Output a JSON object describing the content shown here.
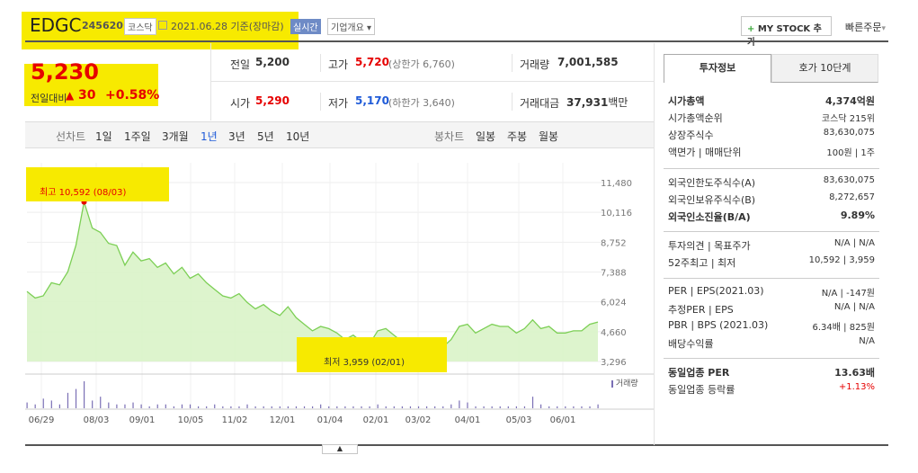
{
  "header": {
    "name": "EDGC",
    "code": "245620",
    "market_badge": "코스닥",
    "date_text": "2021.06.28 기준(장마감)",
    "realtime_label": "실시간",
    "company_info_label": "기업개요",
    "mystock_label": "MY STOCK 추가",
    "quick_order_label": "빠른주문"
  },
  "price": {
    "current": "5,230",
    "change_label": "전일대비",
    "change_value": "30",
    "change_pct": "+0.58%"
  },
  "quote": {
    "prev_close_label": "전일",
    "prev_close": "5,200",
    "high_label": "고가",
    "high": "5,720",
    "upper_limit": "(상한가 6,760)",
    "volume_label": "거래량",
    "volume": "7,001,585",
    "open_label": "시가",
    "open": "5,290",
    "low_label": "저가",
    "low": "5,170",
    "lower_limit": "(하한가 3,640)",
    "amount_label": "거래대금",
    "amount": "37,931",
    "amount_unit": "백만"
  },
  "chart_tabs": {
    "line_label": "선차트",
    "line_periods": [
      "1일",
      "1주일",
      "3개월",
      "1년",
      "3년",
      "5년",
      "10년"
    ],
    "active_period": "1년",
    "candle_label": "봉차트",
    "candle_periods": [
      "일봉",
      "주봉",
      "월봉"
    ]
  },
  "colors": {
    "accent_red": "#e60000",
    "accent_blue": "#1f5bd8",
    "highlight": "#f7ea00",
    "area_fill": "#d9f3c8",
    "area_line": "#7ccf55"
  },
  "chart_data": {
    "type": "area",
    "annotations": {
      "max": "최고 10,592 (08/03)",
      "min": "최저 3,959 (02/01)"
    },
    "y_ticks": [
      "11,480",
      "10,116",
      "8,752",
      "7,388",
      "6,024",
      "4,660",
      "3,296"
    ],
    "ylim": [
      3296,
      11480
    ],
    "x_ticks": [
      "06/29",
      "08/03",
      "09/01",
      "10/05",
      "11/02",
      "12/01",
      "01/04",
      "02/01",
      "03/02",
      "04/01",
      "05/03",
      "06/01"
    ],
    "volume_label": "거래량",
    "series": [
      {
        "values": [
          6500,
          6200,
          6300,
          6900,
          6800,
          7400,
          8600,
          10592,
          9400,
          9200,
          8700,
          8600,
          7700,
          8300,
          7900,
          8000,
          7600,
          7800,
          7300,
          7600,
          7100,
          7300,
          6900,
          6600,
          6300,
          6200,
          6400,
          6000,
          5700,
          5900,
          5600,
          5400,
          5800,
          5300,
          5000,
          4700,
          4900,
          4800,
          4600,
          4300,
          4500,
          4200,
          4100,
          4700,
          4800,
          4500,
          4200,
          4100,
          4000,
          4200,
          4100,
          3959,
          4300,
          4900,
          5000,
          4600,
          4800,
          5000,
          4900,
          4900,
          4600,
          4800,
          5200,
          4800,
          4900,
          4600,
          4600,
          4700,
          4700,
          5000,
          5100
        ]
      },
      {
        "values": [
          3,
          2,
          5,
          4,
          2,
          8,
          10,
          14,
          4,
          6,
          3,
          2,
          2,
          3,
          2,
          1,
          2,
          2,
          1,
          2,
          2,
          1,
          1,
          2,
          1,
          1,
          1,
          2,
          1,
          1,
          1,
          1,
          1,
          1,
          1,
          1,
          2,
          1,
          1,
          1,
          1,
          1,
          1,
          2,
          1,
          1,
          1,
          1,
          1,
          1,
          1,
          1,
          2,
          4,
          3,
          1,
          1,
          1,
          1,
          1,
          1,
          1,
          6,
          2,
          1,
          1,
          1,
          1,
          1,
          1,
          2
        ]
      }
    ]
  },
  "info": {
    "tab_active": "투자정보",
    "tab_other": "호가 10단계",
    "rows1": [
      {
        "label": "시가총액",
        "value": "4,374억원",
        "bold": true
      },
      {
        "label": "시가총액순위",
        "value": "코스닥 215위"
      },
      {
        "label": "상장주식수",
        "value": "83,630,075"
      },
      {
        "label": "액면가 | 매매단위",
        "value": "100원 | 1주"
      }
    ],
    "rows2": [
      {
        "label": "외국인한도주식수(A)",
        "value": "83,630,075"
      },
      {
        "label": "외국인보유주식수(B)",
        "value": "8,272,657"
      },
      {
        "label": "외국인소진율(B/A)",
        "value": "9.89%",
        "bold": true
      }
    ],
    "rows3": [
      {
        "label": "투자의견 | 목표주가",
        "value": "N/A | N/A"
      },
      {
        "label": "52주최고 | 최저",
        "value": "10,592 | 3,959"
      }
    ],
    "rows4": [
      {
        "label": "PER | EPS(2021.03)",
        "value": "N/A | -147원"
      },
      {
        "label": "추정PER | EPS",
        "value": "N/A | N/A"
      },
      {
        "label": "PBR | BPS (2021.03)",
        "value": "6.34배 | 825원"
      },
      {
        "label": "배당수익률",
        "value": "N/A"
      }
    ],
    "rows5": [
      {
        "label": "동일업종 PER",
        "value": "13.63배",
        "bold": true
      },
      {
        "label": "동일업종 등락률",
        "value": "+1.13%",
        "red": true
      }
    ]
  }
}
